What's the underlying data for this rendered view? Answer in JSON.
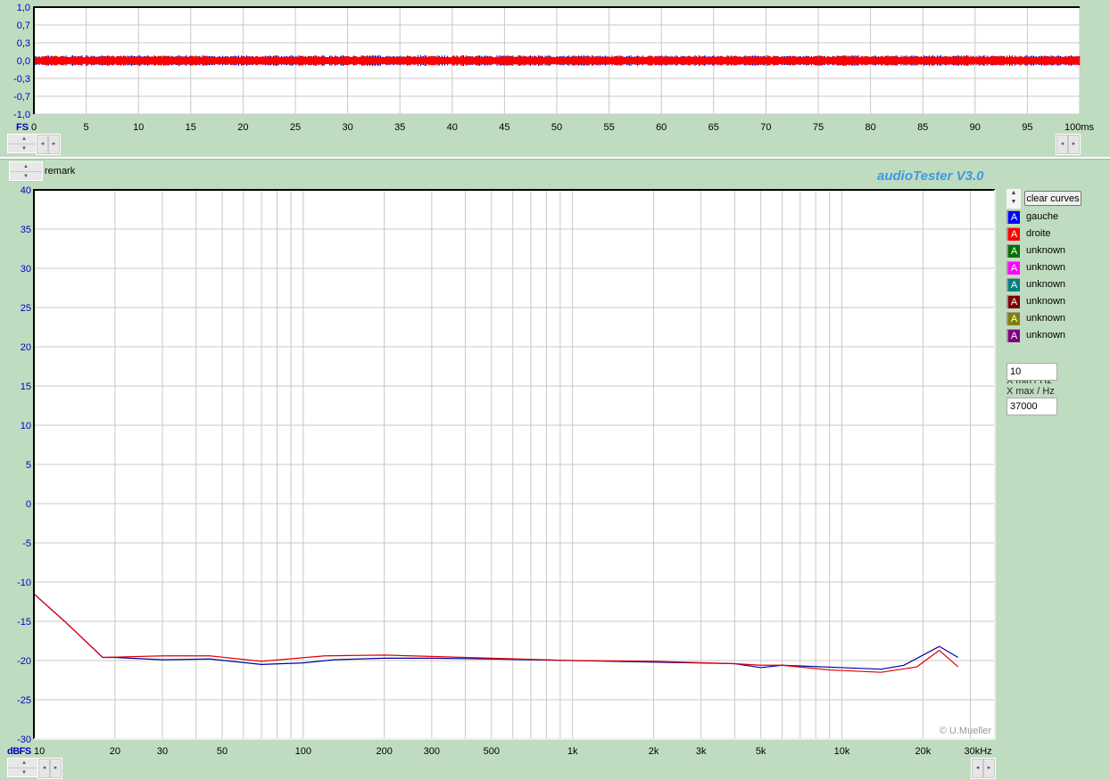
{
  "top_plot": {
    "unit_label": "FS",
    "y_ticks": [
      "1,0",
      "0,7",
      "0,3",
      "0,0",
      "-0,3",
      "-0,7",
      "-1,0"
    ],
    "x_ticks": [
      "0",
      "5",
      "10",
      "15",
      "20",
      "25",
      "30",
      "35",
      "40",
      "45",
      "50",
      "55",
      "60",
      "65",
      "70",
      "75",
      "80",
      "85",
      "90",
      "95",
      "100ms"
    ]
  },
  "remark": "remark",
  "app_title": "audioTester  V3.0",
  "copyright": "© U.Mueller",
  "right_panel": {
    "clear_curves": "clear curves",
    "legend": [
      {
        "label": "gauche",
        "color": "#0000ff",
        "glyph": "A"
      },
      {
        "label": "droite",
        "color": "#ff0000",
        "glyph": "A"
      },
      {
        "label": "unknown",
        "color": "#007000",
        "glyph": "A"
      },
      {
        "label": "unknown",
        "color": "#ff00ff",
        "glyph": "A"
      },
      {
        "label": "unknown",
        "color": "#008080",
        "glyph": "A"
      },
      {
        "label": "unknown",
        "color": "#800000",
        "glyph": "A"
      },
      {
        "label": "unknown",
        "color": "#808000",
        "glyph": "A"
      },
      {
        "label": "unknown",
        "color": "#800080",
        "glyph": "A"
      }
    ],
    "xmin_label": "X min / Hz",
    "xmin_value": "10",
    "xmax_label": "X max / Hz",
    "xmax_value": "37000"
  },
  "chart_data": {
    "type": "line",
    "xscale": "log",
    "xlim": [
      10,
      37000
    ],
    "ylim": [
      -30,
      40
    ],
    "grid": true,
    "unit_label": "dBFS",
    "y_ticks": [
      "40",
      "35",
      "30",
      "25",
      "20",
      "15",
      "10",
      "5",
      "0",
      "-5",
      "-10",
      "-15",
      "-20",
      "-25",
      "-30"
    ],
    "x_tick_labels": [
      {
        "v": 10,
        "t": "10"
      },
      {
        "v": 20,
        "t": "20"
      },
      {
        "v": 30,
        "t": "30"
      },
      {
        "v": 50,
        "t": "50"
      },
      {
        "v": 100,
        "t": "100"
      },
      {
        "v": 200,
        "t": "200"
      },
      {
        "v": 300,
        "t": "300"
      },
      {
        "v": 500,
        "t": "500"
      },
      {
        "v": 1000,
        "t": "1k"
      },
      {
        "v": 2000,
        "t": "2k"
      },
      {
        "v": 3000,
        "t": "3k"
      },
      {
        "v": 5000,
        "t": "5k"
      },
      {
        "v": 10000,
        "t": "10k"
      },
      {
        "v": 20000,
        "t": "20k"
      },
      {
        "v": 30000,
        "t": "30kHz"
      }
    ],
    "series": [
      {
        "name": "gauche",
        "color": "#0000a0",
        "points": [
          [
            10,
            -11.5
          ],
          [
            13,
            -15
          ],
          [
            18,
            -19.6
          ],
          [
            20,
            -19.6
          ],
          [
            30,
            -19.9
          ],
          [
            45,
            -19.8
          ],
          [
            70,
            -20.5
          ],
          [
            100,
            -20.3
          ],
          [
            130,
            -19.9
          ],
          [
            200,
            -19.7
          ],
          [
            300,
            -19.7
          ],
          [
            500,
            -19.8
          ],
          [
            1000,
            -20
          ],
          [
            2000,
            -20.2
          ],
          [
            4000,
            -20.4
          ],
          [
            5000,
            -20.9
          ],
          [
            6000,
            -20.6
          ],
          [
            10000,
            -20.9
          ],
          [
            14000,
            -21.1
          ],
          [
            17000,
            -20.6
          ],
          [
            23000,
            -18.2
          ],
          [
            27000,
            -19.6
          ]
        ]
      },
      {
        "name": "droite",
        "color": "#e00000",
        "points": [
          [
            10,
            -11.5
          ],
          [
            13,
            -15
          ],
          [
            18,
            -19.6
          ],
          [
            30,
            -19.4
          ],
          [
            45,
            -19.4
          ],
          [
            70,
            -20.1
          ],
          [
            120,
            -19.4
          ],
          [
            200,
            -19.3
          ],
          [
            500,
            -19.7
          ],
          [
            1000,
            -20
          ],
          [
            2000,
            -20.1
          ],
          [
            4000,
            -20.4
          ],
          [
            5000,
            -20.6
          ],
          [
            6000,
            -20.6
          ],
          [
            9000,
            -21.2
          ],
          [
            14000,
            -21.5
          ],
          [
            19000,
            -20.8
          ],
          [
            23000,
            -18.7
          ],
          [
            27000,
            -20.8
          ]
        ]
      }
    ]
  },
  "waveform": {
    "type": "line",
    "xlim": [
      0,
      100
    ],
    "ylim": [
      -1,
      1
    ],
    "amplitude": 0.1,
    "series_colors": [
      "#0000c0",
      "#ff0000"
    ]
  }
}
